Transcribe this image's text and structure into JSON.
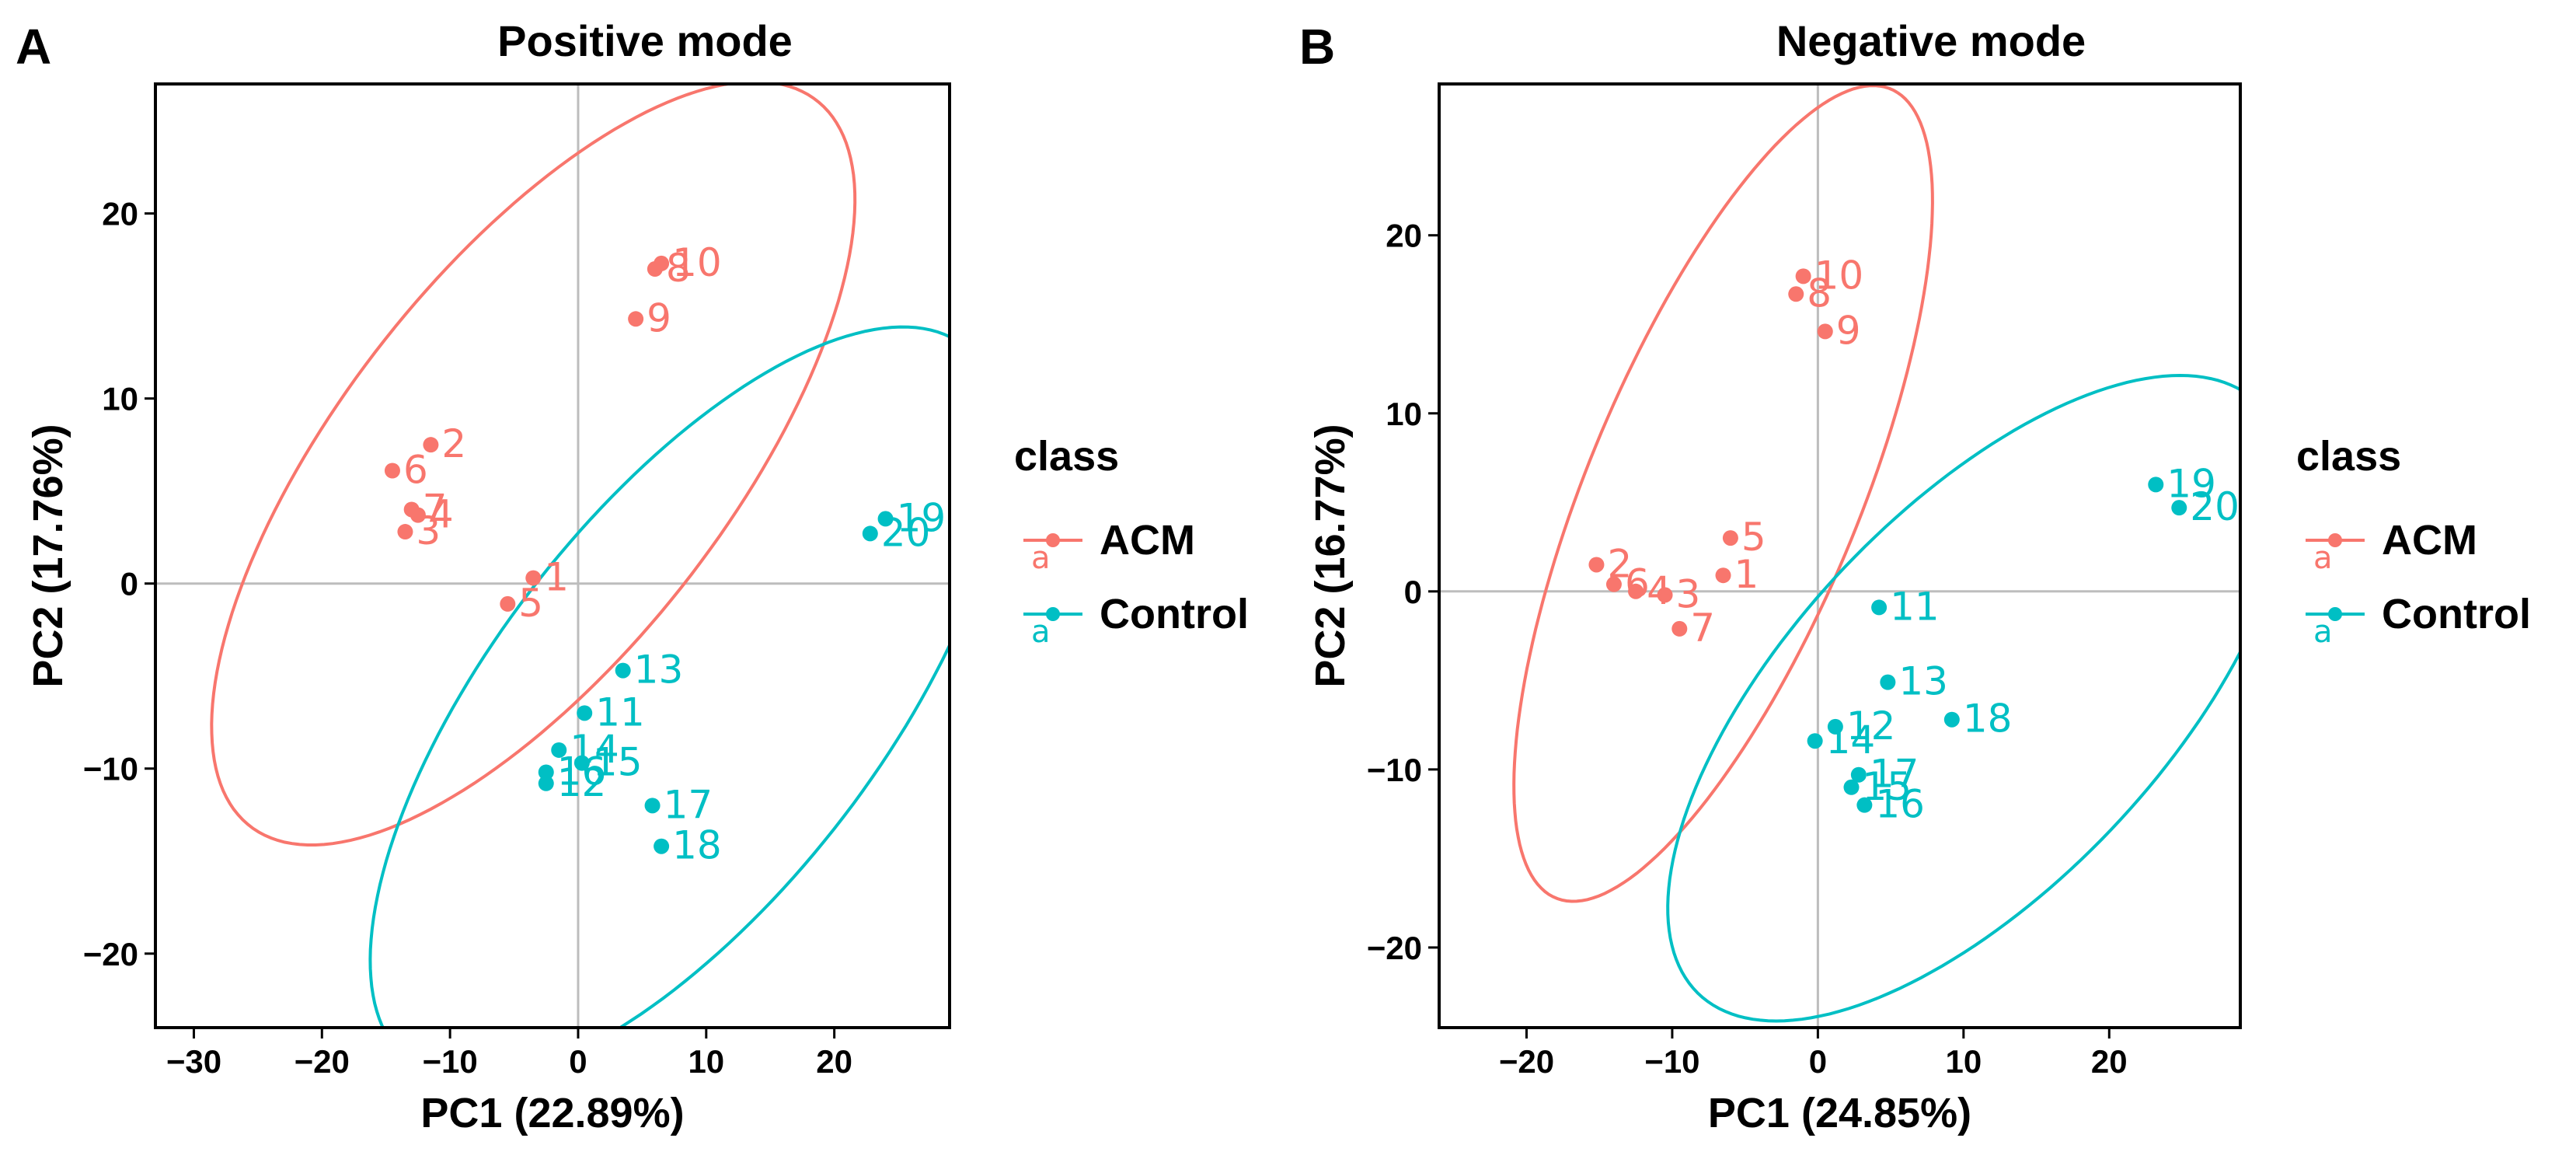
{
  "colors": {
    "ACM": "#F8766D",
    "Control": "#00BFC4",
    "frame": "#000000",
    "refline": "#bdbdbd"
  },
  "panels": [
    {
      "letter": "A"
    },
    {
      "letter": "B"
    }
  ],
  "chart_data": [
    {
      "type": "scatter",
      "title": "Positive mode",
      "xlabel": "PC1 (22.89%)",
      "ylabel": "PC2 (17.76%)",
      "xlim": [
        -33,
        29
      ],
      "ylim": [
        -24,
        27
      ],
      "xticks": [
        -30,
        -20,
        -10,
        0,
        10,
        20
      ],
      "yticks": [
        -20,
        -10,
        0,
        10,
        20
      ],
      "reference_lines": {
        "x": 0,
        "y": 0
      },
      "legend": {
        "title": "class",
        "entries": [
          "ACM",
          "Control"
        ],
        "key_glyph": "a"
      },
      "series": [
        {
          "name": "ACM",
          "points": [
            {
              "label": "1",
              "x": -3.5,
              "y": 0.3
            },
            {
              "label": "2",
              "x": -11.5,
              "y": 7.5
            },
            {
              "label": "3",
              "x": -13.5,
              "y": 2.8
            },
            {
              "label": "4",
              "x": -12.5,
              "y": 3.7
            },
            {
              "label": "5",
              "x": -5.5,
              "y": -1.1
            },
            {
              "label": "6",
              "x": -14.5,
              "y": 6.1
            },
            {
              "label": "7",
              "x": -13.0,
              "y": 4.0
            },
            {
              "label": "8",
              "x": 6.0,
              "y": 17.0
            },
            {
              "label": "9",
              "x": 4.5,
              "y": 14.3
            },
            {
              "label": "10",
              "x": 6.5,
              "y": 17.3
            }
          ],
          "ellipse": {
            "cx": -3.5,
            "cy": 6.5,
            "rx": 30,
            "ry": 12.5,
            "angle": 37
          }
        },
        {
          "name": "Control",
          "points": [
            {
              "label": "11",
              "x": 0.5,
              "y": -7.0
            },
            {
              "label": "12",
              "x": -2.5,
              "y": -10.8
            },
            {
              "label": "13",
              "x": 3.5,
              "y": -4.7
            },
            {
              "label": "14",
              "x": -1.5,
              "y": -9.0
            },
            {
              "label": "15",
              "x": 0.3,
              "y": -9.7
            },
            {
              "label": "16",
              "x": -2.5,
              "y": -10.2
            },
            {
              "label": "17",
              "x": 5.8,
              "y": -12.0
            },
            {
              "label": "18",
              "x": 6.5,
              "y": -14.2
            },
            {
              "label": "19",
              "x": 24.0,
              "y": 3.5
            },
            {
              "label": "20",
              "x": 22.8,
              "y": 2.7
            }
          ],
          "ellipse": {
            "cx": 8.5,
            "cy": -6.5,
            "rx": 29.5,
            "ry": 12.5,
            "angle": 37
          }
        }
      ]
    },
    {
      "type": "scatter",
      "title": "Negative mode",
      "xlabel": "PC1 (24.85%)",
      "ylabel": "PC2 (16.77%)",
      "xlim": [
        -26,
        29
      ],
      "ylim": [
        -24.5,
        28.5
      ],
      "xticks": [
        -20,
        -10,
        0,
        10,
        20
      ],
      "yticks": [
        -20,
        -10,
        0,
        10,
        20
      ],
      "reference_lines": {
        "x": 0,
        "y": 0
      },
      "legend": {
        "title": "class",
        "entries": [
          "ACM",
          "Control"
        ],
        "key_glyph": "a"
      },
      "series": [
        {
          "name": "ACM",
          "points": [
            {
              "label": "1",
              "x": -6.5,
              "y": 0.9
            },
            {
              "label": "2",
              "x": -15.2,
              "y": 1.5
            },
            {
              "label": "3",
              "x": -10.5,
              "y": -0.2
            },
            {
              "label": "4",
              "x": -12.5,
              "y": 0.0
            },
            {
              "label": "5",
              "x": -6.0,
              "y": 3.0
            },
            {
              "label": "6",
              "x": -14.0,
              "y": 0.4
            },
            {
              "label": "7",
              "x": -9.5,
              "y": -2.1
            },
            {
              "label": "8",
              "x": -1.5,
              "y": 16.7
            },
            {
              "label": "9",
              "x": 0.5,
              "y": 14.6
            },
            {
              "label": "10",
              "x": -1.0,
              "y": 17.7
            }
          ],
          "ellipse": {
            "cx": -6.5,
            "cy": 5.5,
            "rx": 25.5,
            "ry": 9.0,
            "angle": 62
          }
        },
        {
          "name": "Control",
          "points": [
            {
              "label": "11",
              "x": 4.2,
              "y": -0.9
            },
            {
              "label": "12",
              "x": 1.2,
              "y": -7.6
            },
            {
              "label": "13",
              "x": 4.8,
              "y": -5.1
            },
            {
              "label": "14",
              "x": -0.2,
              "y": -8.4
            },
            {
              "label": "15",
              "x": 2.3,
              "y": -11.0
            },
            {
              "label": "16",
              "x": 3.2,
              "y": -12.0
            },
            {
              "label": "17",
              "x": 2.8,
              "y": -10.3
            },
            {
              "label": "18",
              "x": 9.2,
              "y": -7.2
            },
            {
              "label": "19",
              "x": 23.2,
              "y": 6.0
            },
            {
              "label": "20",
              "x": 24.8,
              "y": 4.7
            }
          ],
          "ellipse": {
            "cx": 11.0,
            "cy": -6.0,
            "rx": 25.5,
            "ry": 11.5,
            "angle": 38
          }
        }
      ]
    }
  ]
}
